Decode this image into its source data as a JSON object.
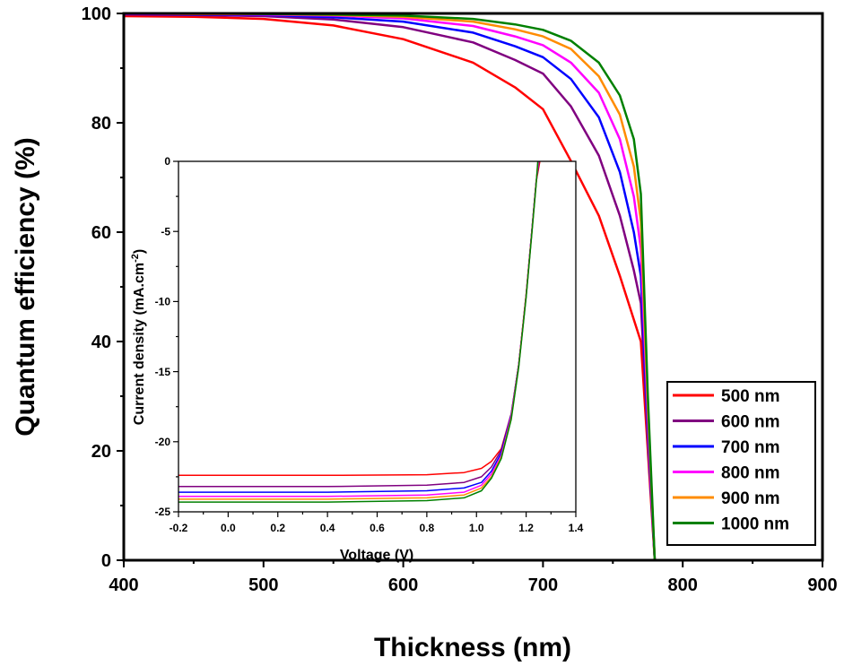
{
  "chart_data": [
    {
      "type": "line",
      "xlabel": "Thickness (nm)",
      "ylabel": "Quantum efficiency (%)",
      "xlim": [
        400,
        900
      ],
      "ylim": [
        0,
        100
      ],
      "xticks": [
        "400",
        "500",
        "600",
        "700",
        "800",
        "900"
      ],
      "yticks": [
        "0",
        "20",
        "40",
        "60",
        "80",
        "100"
      ],
      "legend_position": "bottom-right",
      "legend": [
        "500 nm",
        "600 nm",
        "700 nm",
        "800 nm",
        "900 nm",
        "1000 nm"
      ],
      "series": [
        {
          "name": "500 nm",
          "color": "#ff0000",
          "x": [
            400,
            450,
            500,
            550,
            600,
            650,
            680,
            700,
            720,
            740,
            755,
            765,
            770,
            775,
            780,
            900
          ],
          "y": [
            99.5,
            99.4,
            99.0,
            97.8,
            95.3,
            91.0,
            86.5,
            82.5,
            73.0,
            63.0,
            52.0,
            44.0,
            40.0,
            20.0,
            0,
            0
          ]
        },
        {
          "name": "600 nm",
          "color": "#800080",
          "x": [
            400,
            450,
            500,
            550,
            600,
            650,
            680,
            700,
            720,
            740,
            755,
            765,
            770,
            775,
            780,
            900
          ],
          "y": [
            99.8,
            99.7,
            99.5,
            98.9,
            97.5,
            94.7,
            91.5,
            89.0,
            83.0,
            74.0,
            63.0,
            53.0,
            47.0,
            22.0,
            0,
            0
          ]
        },
        {
          "name": "700 nm",
          "color": "#0000ff",
          "x": [
            400,
            450,
            500,
            550,
            600,
            650,
            680,
            700,
            720,
            740,
            755,
            765,
            770,
            775,
            780,
            900
          ],
          "y": [
            99.9,
            99.8,
            99.7,
            99.3,
            98.5,
            96.5,
            94.0,
            92.0,
            88.0,
            81.0,
            71.0,
            60.0,
            52.0,
            24.0,
            0,
            0
          ]
        },
        {
          "name": "800 nm",
          "color": "#ff00ff",
          "x": [
            400,
            450,
            500,
            550,
            600,
            650,
            680,
            700,
            720,
            740,
            755,
            765,
            770,
            775,
            780,
            900
          ],
          "y": [
            99.9,
            99.9,
            99.8,
            99.6,
            99.1,
            97.7,
            95.8,
            94.2,
            91.0,
            85.5,
            77.0,
            66.5,
            57.0,
            26.0,
            0,
            0
          ]
        },
        {
          "name": "900 nm",
          "color": "#ff8c00",
          "x": [
            400,
            450,
            500,
            550,
            600,
            650,
            680,
            700,
            720,
            740,
            755,
            765,
            770,
            775,
            780,
            900
          ],
          "y": [
            100,
            99.9,
            99.9,
            99.7,
            99.4,
            98.5,
            97.1,
            95.8,
            93.5,
            88.5,
            81.5,
            72.0,
            62.0,
            28.0,
            0,
            0
          ]
        },
        {
          "name": "1000 nm",
          "color": "#008000",
          "x": [
            400,
            450,
            500,
            550,
            600,
            650,
            680,
            700,
            720,
            740,
            755,
            765,
            770,
            775,
            780,
            900
          ],
          "y": [
            100,
            100,
            99.9,
            99.8,
            99.6,
            99.0,
            98.0,
            97.0,
            95.0,
            91.0,
            85.0,
            77.0,
            67.0,
            30.0,
            0,
            0
          ]
        }
      ]
    },
    {
      "type": "line",
      "inset": true,
      "xlabel": "Voltage (V)",
      "ylabel": "Current density (mA.cm",
      "ylabel_sup": "-2",
      "ylabel_end": ")",
      "xlim": [
        -0.2,
        1.4
      ],
      "ylim": [
        -25,
        0
      ],
      "xticks": [
        "-0.2",
        "0.0",
        "0.2",
        "0.4",
        "0.6",
        "0.8",
        "1.0",
        "1.2",
        "1.4"
      ],
      "yticks": [
        "0",
        "-5",
        "-10",
        "-15",
        "-20",
        "-25"
      ],
      "series": [
        {
          "name": "500 nm",
          "color": "#ff0000",
          "x": [
            -0.2,
            0.0,
            0.4,
            0.8,
            0.95,
            1.02,
            1.06,
            1.1,
            1.14,
            1.17,
            1.2,
            1.22,
            1.24,
            1.255
          ],
          "y": [
            -22.4,
            -22.4,
            -22.4,
            -22.35,
            -22.2,
            -21.9,
            -21.4,
            -20.5,
            -18.0,
            -14.5,
            -9.5,
            -5.5,
            -1.5,
            0
          ]
        },
        {
          "name": "600 nm",
          "color": "#800080",
          "x": [
            -0.2,
            0.0,
            0.4,
            0.8,
            0.95,
            1.02,
            1.06,
            1.1,
            1.14,
            1.17,
            1.2,
            1.22,
            1.24,
            1.252
          ],
          "y": [
            -23.2,
            -23.2,
            -23.2,
            -23.1,
            -22.9,
            -22.5,
            -21.8,
            -20.6,
            -18.0,
            -14.5,
            -9.5,
            -5.5,
            -1.5,
            0
          ]
        },
        {
          "name": "700 nm",
          "color": "#0000ff",
          "x": [
            -0.2,
            0.0,
            0.4,
            0.8,
            0.95,
            1.02,
            1.06,
            1.1,
            1.14,
            1.17,
            1.2,
            1.22,
            1.24,
            1.25
          ],
          "y": [
            -23.6,
            -23.6,
            -23.6,
            -23.5,
            -23.3,
            -22.9,
            -22.1,
            -20.8,
            -18.1,
            -14.5,
            -9.6,
            -5.5,
            -1.5,
            0
          ]
        },
        {
          "name": "800 nm",
          "color": "#ff00ff",
          "x": [
            -0.2,
            0.0,
            0.4,
            0.8,
            0.95,
            1.02,
            1.06,
            1.1,
            1.14,
            1.17,
            1.2,
            1.22,
            1.24,
            1.249
          ],
          "y": [
            -23.9,
            -23.9,
            -23.9,
            -23.8,
            -23.6,
            -23.1,
            -22.3,
            -21.0,
            -18.2,
            -14.6,
            -9.6,
            -5.6,
            -1.6,
            0
          ]
        },
        {
          "name": "900 nm",
          "color": "#ff8c00",
          "x": [
            -0.2,
            0.0,
            0.4,
            0.8,
            0.95,
            1.02,
            1.06,
            1.1,
            1.14,
            1.17,
            1.2,
            1.22,
            1.24,
            1.248
          ],
          "y": [
            -24.1,
            -24.1,
            -24.1,
            -24.0,
            -23.8,
            -23.3,
            -22.5,
            -21.1,
            -18.3,
            -14.6,
            -9.6,
            -5.6,
            -1.6,
            0
          ]
        },
        {
          "name": "1000 nm",
          "color": "#008000",
          "x": [
            -0.2,
            0.0,
            0.4,
            0.8,
            0.95,
            1.02,
            1.06,
            1.1,
            1.14,
            1.17,
            1.2,
            1.22,
            1.24,
            1.247
          ],
          "y": [
            -24.3,
            -24.3,
            -24.3,
            -24.2,
            -24.0,
            -23.5,
            -22.6,
            -21.2,
            -18.4,
            -14.7,
            -9.7,
            -5.7,
            -1.7,
            0
          ]
        }
      ]
    }
  ]
}
